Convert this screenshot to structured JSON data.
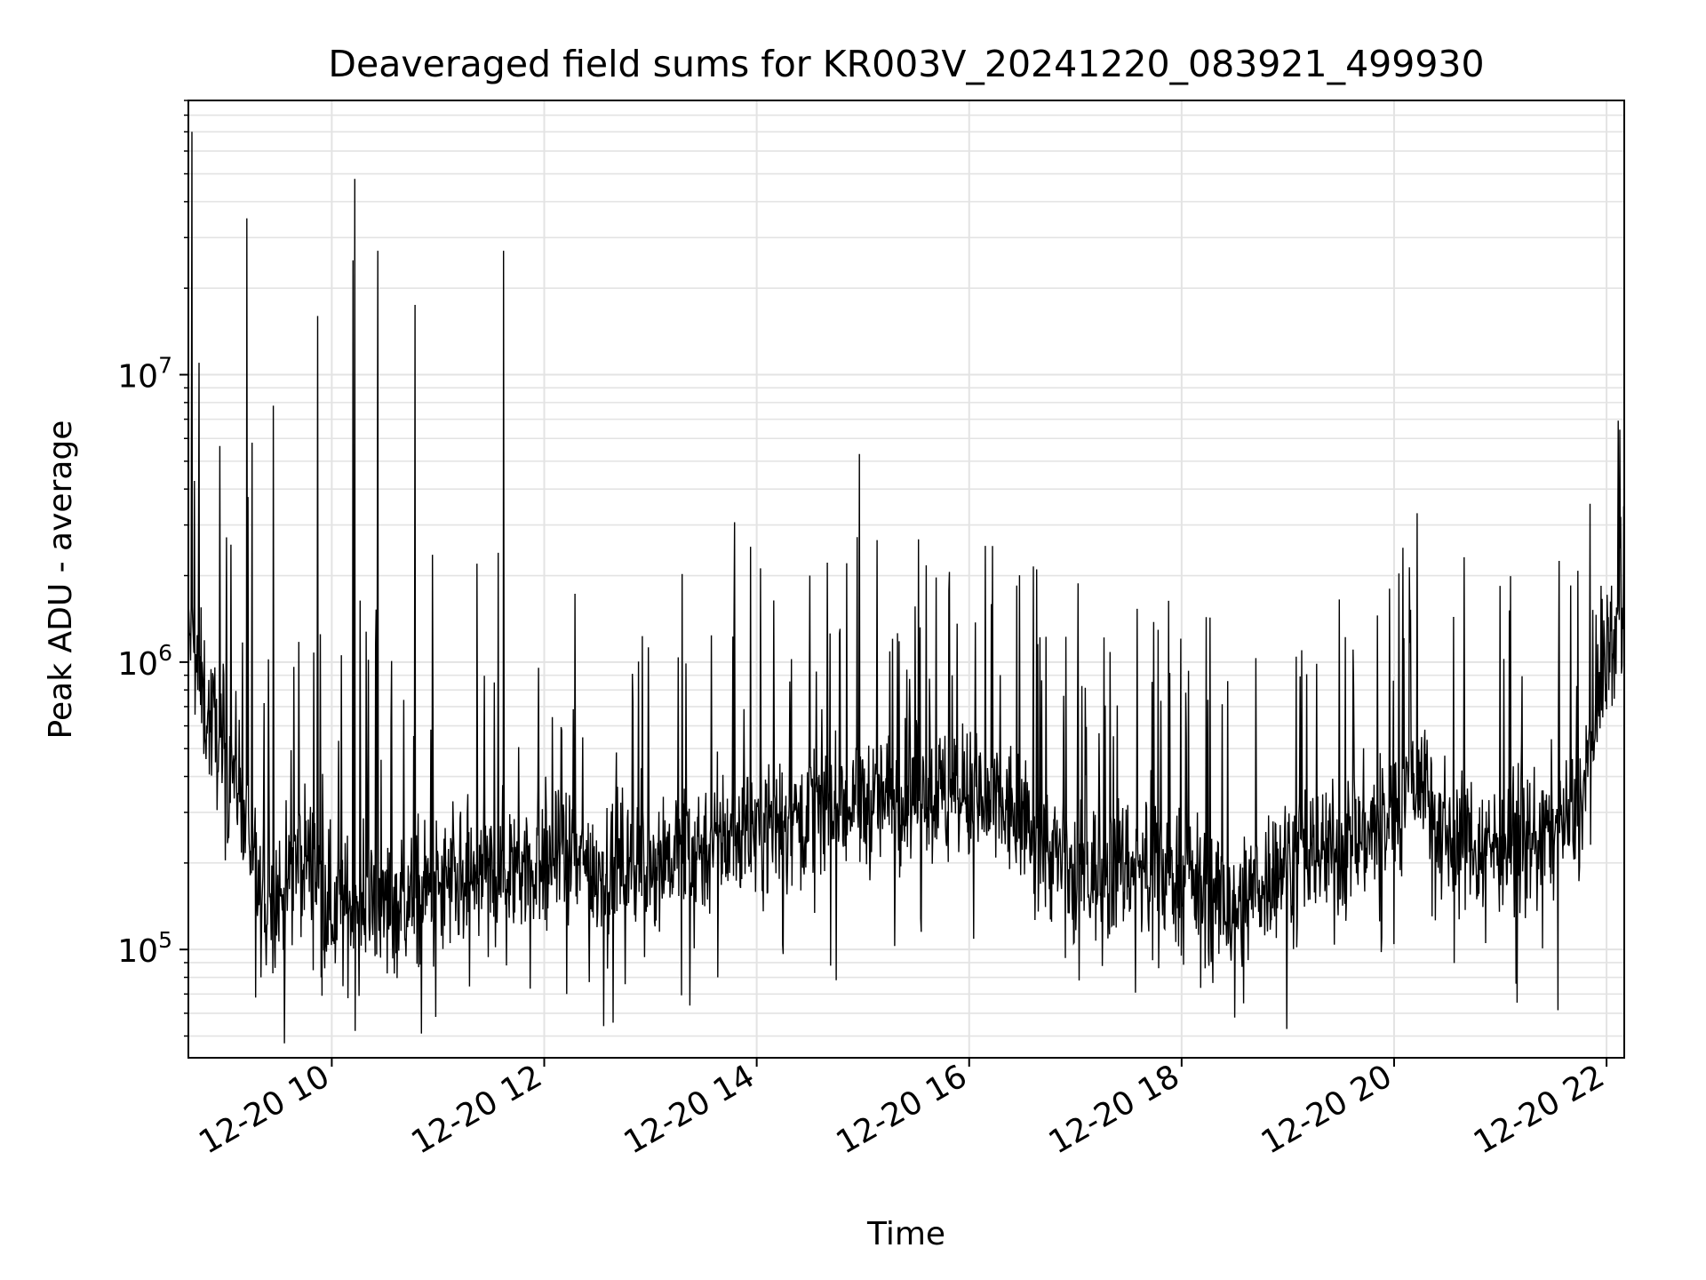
{
  "chart_data": {
    "type": "line",
    "title": "Deaveraged field sums for KR003V_20241220_083921_499930",
    "xlabel": "Time",
    "ylabel": "Peak ADU - average",
    "y_scale": "log",
    "xlim": [
      "12-20 08:39",
      "12-20 22:10"
    ],
    "ylim": [
      42000,
      90000000
    ],
    "grid": true,
    "x_ticks": [
      "12-20 10",
      "12-20 12",
      "12-20 14",
      "12-20 16",
      "12-20 18",
      "12-20 20",
      "12-20 22"
    ],
    "y_ticks": [
      {
        "base": "10",
        "exp": "5",
        "value": 100000
      },
      {
        "base": "10",
        "exp": "6",
        "value": 1000000
      },
      {
        "base": "10",
        "exp": "7",
        "value": 10000000
      }
    ],
    "series": [
      {
        "color": "#000000",
        "trend_points": [
          [
            "12-20 08:40",
            1200000
          ],
          [
            "12-20 08:50",
            650000
          ],
          [
            "12-20 09:00",
            500000
          ],
          [
            "12-20 09:10",
            350000
          ],
          [
            "12-20 09:20",
            140000
          ],
          [
            "12-20 09:30",
            150000
          ],
          [
            "12-20 09:45",
            220000
          ],
          [
            "12-20 10:00",
            140000
          ],
          [
            "12-20 10:30",
            140000
          ],
          [
            "12-20 11:00",
            160000
          ],
          [
            "12-20 11:30",
            180000
          ],
          [
            "12-20 12:00",
            210000
          ],
          [
            "12-20 12:30",
            190000
          ],
          [
            "12-20 13:00",
            210000
          ],
          [
            "12-20 13:30",
            230000
          ],
          [
            "12-20 14:00",
            270000
          ],
          [
            "12-20 14:30",
            300000
          ],
          [
            "12-20 15:00",
            320000
          ],
          [
            "12-20 15:30",
            350000
          ],
          [
            "12-20 16:00",
            330000
          ],
          [
            "12-20 16:30",
            290000
          ],
          [
            "12-20 16:45",
            220000
          ],
          [
            "12-20 17:00",
            180000
          ],
          [
            "12-20 17:30",
            200000
          ],
          [
            "12-20 18:00",
            180000
          ],
          [
            "12-20 18:30",
            140000
          ],
          [
            "12-20 19:00",
            210000
          ],
          [
            "12-20 19:30",
            220000
          ],
          [
            "12-20 20:00",
            300000
          ],
          [
            "12-20 20:15",
            420000
          ],
          [
            "12-20 20:30",
            250000
          ],
          [
            "12-20 21:00",
            230000
          ],
          [
            "12-20 21:30",
            260000
          ],
          [
            "12-20 21:45",
            300000
          ],
          [
            "12-20 22:00",
            1100000
          ],
          [
            "12-20 22:10",
            1400000
          ]
        ],
        "spikes": [
          [
            "12-20 08:41",
            70000000
          ],
          [
            "12-20 08:45",
            11000000
          ],
          [
            "12-20 09:12",
            35000000
          ],
          [
            "12-20 09:15",
            5800000
          ],
          [
            "12-20 09:27",
            7800000
          ],
          [
            "12-20 09:52",
            16000000
          ],
          [
            "12-20 10:12",
            25000000
          ],
          [
            "12-20 10:13",
            48000000
          ],
          [
            "12-20 10:26",
            27000000
          ],
          [
            "12-20 10:47",
            17500000
          ],
          [
            "12-20 11:22",
            2200000
          ],
          [
            "12-20 11:34",
            2400000
          ],
          [
            "12-20 11:37",
            27000000
          ],
          [
            "12-20 14:30",
            2000000
          ],
          [
            "12-20 14:58",
            5300000
          ],
          [
            "12-20 20:05",
            2500000
          ],
          [
            "12-20 22:08",
            3200000
          ]
        ],
        "dips": [
          [
            "12-20 09:17",
            68000
          ],
          [
            "12-20 09:20",
            80000
          ],
          [
            "12-20 09:54",
            80000
          ],
          [
            "12-20 13:38",
            80000
          ],
          [
            "12-20 18:30",
            58000
          ],
          [
            "12-20 18:35",
            65000
          ]
        ]
      }
    ]
  }
}
